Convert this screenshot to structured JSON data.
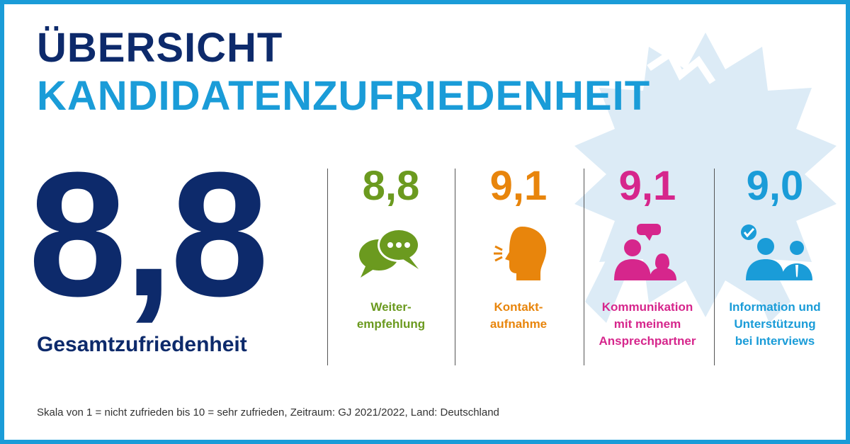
{
  "header": {
    "title_line1": "ÜBERSICHT",
    "title_line2": "KANDIDATENZUFRIEDENHEIT"
  },
  "overall": {
    "score": "8,8",
    "label": "Gesamtzufriedenheit"
  },
  "categories": [
    {
      "score": "8,8",
      "label": "Weiter-\nempfehlung",
      "icon": "speech-bubbles-icon",
      "color": "#6b9a1f"
    },
    {
      "score": "9,1",
      "label": "Kontakt-\naufnahme",
      "icon": "speaking-head-icon",
      "color": "#e8850c"
    },
    {
      "score": "9,1",
      "label": "Kommunikation\nmit meinem\nAnsprechpartner",
      "icon": "two-people-talking-icon",
      "color": "#d6268c"
    },
    {
      "score": "9,0",
      "label": "Information und\nUnterstützung\nbei Interviews",
      "icon": "people-checkmark-icon",
      "color": "#1a9cd8"
    }
  ],
  "footnote": "Skala von 1 = nicht zufrieden bis 10 = sehr zufrieden, Zeitraum: GJ 2021/2022, Land: Deutschland",
  "colors": {
    "navy": "#0d2a6b",
    "blue": "#1a9cd8",
    "badge": "#dff0f9"
  }
}
